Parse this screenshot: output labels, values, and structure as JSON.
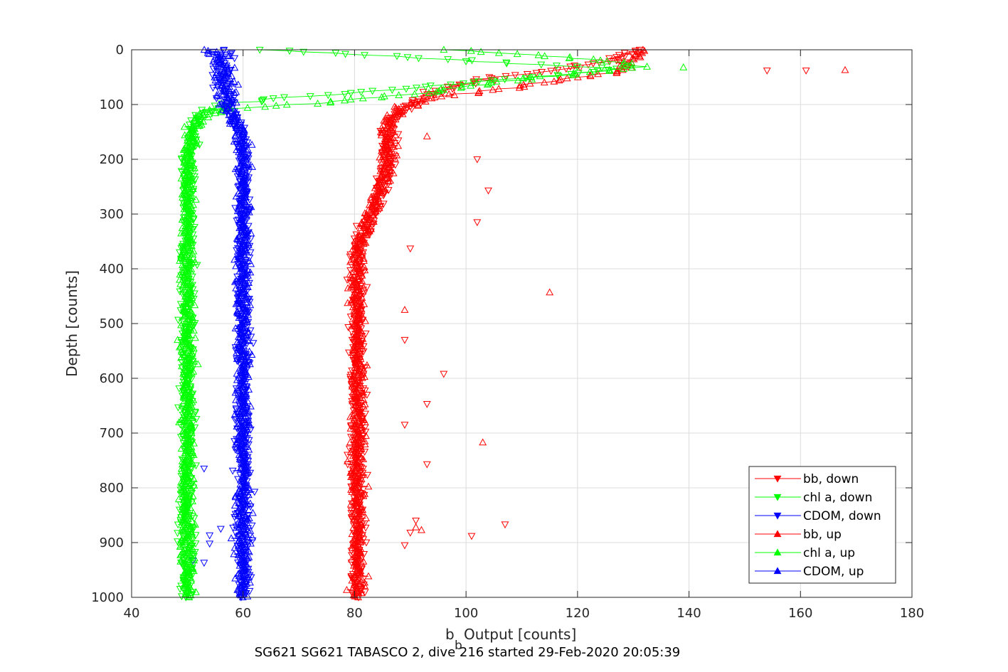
{
  "chart_data": {
    "type": "scatter",
    "xlabel_base": "b",
    "xlabel_sub": "b",
    "xlabel_rest": " Output [counts]",
    "ylabel": "Depth [counts]",
    "subtitle": "SG621 SG621 TABASCO 2, dive 216 started 29-Feb-2020 20:05:39",
    "xlim": [
      40,
      180
    ],
    "ylim": [
      0,
      1000
    ],
    "y_reversed": true,
    "grid": true,
    "legend_position": "bottom-right",
    "x_ticks": [
      "40",
      "60",
      "80",
      "100",
      "120",
      "140",
      "160",
      "180"
    ],
    "y_ticks": [
      "0",
      "100",
      "200",
      "300",
      "400",
      "500",
      "600",
      "700",
      "800",
      "900",
      "1000"
    ],
    "series": [
      {
        "name": "bb, down",
        "color": "#ff0000",
        "marker": "triangle-down",
        "profile": [
          [
            0,
            130
          ],
          [
            20,
            126
          ],
          [
            35,
            118
          ],
          [
            50,
            105
          ],
          [
            70,
            97
          ],
          [
            90,
            92
          ],
          [
            110,
            88
          ],
          [
            140,
            86
          ],
          [
            170,
            86.5
          ],
          [
            200,
            86
          ],
          [
            250,
            85
          ],
          [
            300,
            83
          ],
          [
            350,
            81
          ],
          [
            400,
            80.5
          ],
          [
            500,
            80.5
          ],
          [
            600,
            80.5
          ],
          [
            700,
            80.5
          ],
          [
            800,
            80.5
          ],
          [
            900,
            80.5
          ],
          [
            1000,
            80.5
          ]
        ],
        "outliers": [
          [
            154,
            38
          ],
          [
            161,
            38
          ],
          [
            102,
            200
          ],
          [
            104,
            257
          ],
          [
            102,
            315
          ],
          [
            90,
            363
          ],
          [
            89,
            530
          ],
          [
            96,
            592
          ],
          [
            93,
            647
          ],
          [
            89,
            685
          ],
          [
            93,
            757
          ],
          [
            107,
            867
          ],
          [
            101,
            888
          ],
          [
            91,
            860
          ],
          [
            90,
            882
          ],
          [
            89,
            905
          ]
        ]
      },
      {
        "name": "chl a, down",
        "color": "#00ff00",
        "marker": "triangle-down",
        "profile": [
          [
            0,
            65
          ],
          [
            20,
            100
          ],
          [
            35,
            128
          ],
          [
            45,
            118
          ],
          [
            60,
            100
          ],
          [
            75,
            85
          ],
          [
            90,
            65
          ],
          [
            100,
            56
          ],
          [
            110,
            54
          ],
          [
            120,
            52
          ],
          [
            140,
            51
          ],
          [
            170,
            50.5
          ],
          [
            200,
            50
          ],
          [
            300,
            50
          ],
          [
            400,
            50
          ],
          [
            500,
            50
          ],
          [
            600,
            50
          ],
          [
            700,
            50
          ],
          [
            800,
            50
          ],
          [
            900,
            50
          ],
          [
            1000,
            50
          ]
        ],
        "outliers": []
      },
      {
        "name": "CDOM, down",
        "color": "#0000ff",
        "marker": "triangle-down",
        "profile": [
          [
            0,
            56
          ],
          [
            20,
            56
          ],
          [
            50,
            56.5
          ],
          [
            80,
            57
          ],
          [
            110,
            58
          ],
          [
            150,
            59.5
          ],
          [
            200,
            60
          ],
          [
            300,
            60
          ],
          [
            400,
            60
          ],
          [
            500,
            60
          ],
          [
            600,
            60
          ],
          [
            700,
            60
          ],
          [
            800,
            60
          ],
          [
            900,
            60
          ],
          [
            1000,
            60
          ]
        ],
        "outliers": [
          [
            51,
            933
          ],
          [
            53,
            765
          ],
          [
            56,
            875
          ],
          [
            54,
            887
          ],
          [
            54,
            902
          ],
          [
            53,
            937
          ]
        ]
      },
      {
        "name": "bb, up",
        "color": "#ff0000",
        "marker": "triangle-up",
        "profile": [
          [
            0,
            132
          ],
          [
            20,
            130
          ],
          [
            38,
            128
          ],
          [
            50,
            120
          ],
          [
            70,
            107
          ],
          [
            90,
            92
          ],
          [
            110,
            88
          ],
          [
            140,
            86
          ],
          [
            170,
            86.5
          ],
          [
            200,
            86
          ],
          [
            250,
            85
          ],
          [
            300,
            83
          ],
          [
            350,
            81
          ],
          [
            400,
            80.5
          ],
          [
            500,
            80.5
          ],
          [
            600,
            80.5
          ],
          [
            700,
            80.5
          ],
          [
            800,
            80.5
          ],
          [
            900,
            80.5
          ],
          [
            1000,
            80.5
          ]
        ],
        "outliers": [
          [
            168,
            37
          ],
          [
            93,
            158
          ],
          [
            115,
            443
          ],
          [
            89,
            475
          ],
          [
            103,
            717
          ],
          [
            92,
            877
          ],
          [
            91,
            872
          ]
        ]
      },
      {
        "name": "chl a, up",
        "color": "#00ff00",
        "marker": "triangle-up",
        "profile": [
          [
            0,
            98
          ],
          [
            10,
            113
          ],
          [
            20,
            125
          ],
          [
            32,
            132
          ],
          [
            45,
            118
          ],
          [
            60,
            105
          ],
          [
            80,
            92
          ],
          [
            100,
            70
          ],
          [
            110,
            56
          ],
          [
            120,
            53
          ],
          [
            140,
            51
          ],
          [
            170,
            50.5
          ],
          [
            200,
            50
          ],
          [
            300,
            50
          ],
          [
            400,
            50
          ],
          [
            500,
            50
          ],
          [
            600,
            50
          ],
          [
            700,
            50
          ],
          [
            800,
            50
          ],
          [
            900,
            50
          ],
          [
            1000,
            50
          ]
        ],
        "outliers": [
          [
            139,
            32
          ]
        ]
      },
      {
        "name": "CDOM, up",
        "color": "#0000ff",
        "marker": "triangle-up",
        "profile": [
          [
            0,
            55
          ],
          [
            20,
            56
          ],
          [
            50,
            56.5
          ],
          [
            80,
            57
          ],
          [
            110,
            58
          ],
          [
            150,
            59.5
          ],
          [
            200,
            60
          ],
          [
            300,
            60
          ],
          [
            400,
            60
          ],
          [
            500,
            60
          ],
          [
            600,
            60
          ],
          [
            700,
            60
          ],
          [
            800,
            60
          ],
          [
            900,
            60
          ],
          [
            1000,
            60
          ]
        ],
        "outliers": []
      }
    ]
  }
}
